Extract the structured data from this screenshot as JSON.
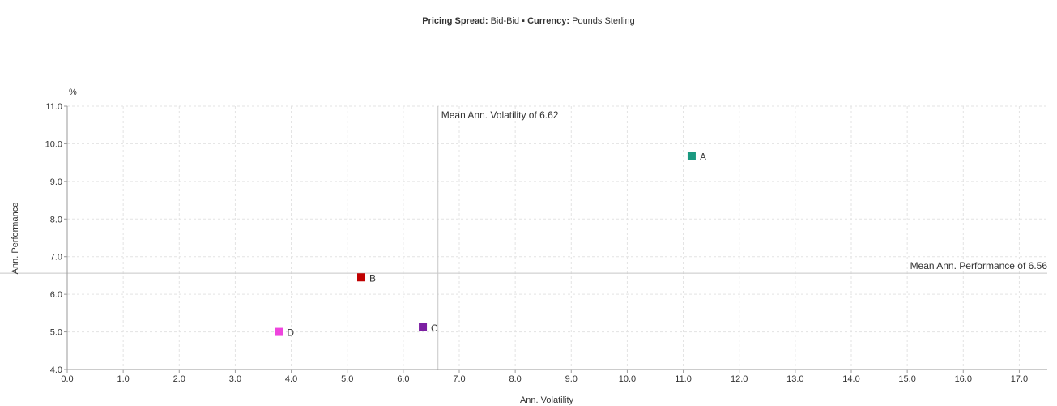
{
  "header": {
    "spread_label": "Pricing Spread:",
    "spread_value": "Bid-Bid",
    "separator": "▪",
    "currency_label": "Currency:",
    "currency_value": "Pounds Sterling"
  },
  "chart_data": {
    "type": "scatter",
    "xlabel": "Ann. Volatility",
    "ylabel": "Ann. Performance",
    "yunit": "%",
    "xlim": [
      0,
      17.5
    ],
    "ylim": [
      4,
      11
    ],
    "xticks": [
      "0.0",
      "1.0",
      "2.0",
      "3.0",
      "4.0",
      "5.0",
      "6.0",
      "7.0",
      "8.0",
      "9.0",
      "10.0",
      "11.0",
      "12.0",
      "13.0",
      "14.0",
      "15.0",
      "16.0",
      "17.0"
    ],
    "yticks": [
      "4.0",
      "5.0",
      "6.0",
      "7.0",
      "8.0",
      "9.0",
      "10.0",
      "11.0"
    ],
    "grid": true,
    "points": [
      {
        "label": "A",
        "x": 11.15,
        "y": 9.68,
        "color": "#1a9980"
      },
      {
        "label": "B",
        "x": 5.25,
        "y": 6.45,
        "color": "#c00000"
      },
      {
        "label": "C",
        "x": 6.35,
        "y": 5.12,
        "color": "#7b1fa2"
      },
      {
        "label": "D",
        "x": 3.78,
        "y": 5.0,
        "color": "#ee44dd"
      }
    ],
    "reference_lines": {
      "mean_volatility": {
        "value": 6.62,
        "label": "Mean Ann. Volatility of 6.62"
      },
      "mean_performance": {
        "value": 6.56,
        "label": "Mean Ann. Performance of 6.56"
      }
    }
  }
}
